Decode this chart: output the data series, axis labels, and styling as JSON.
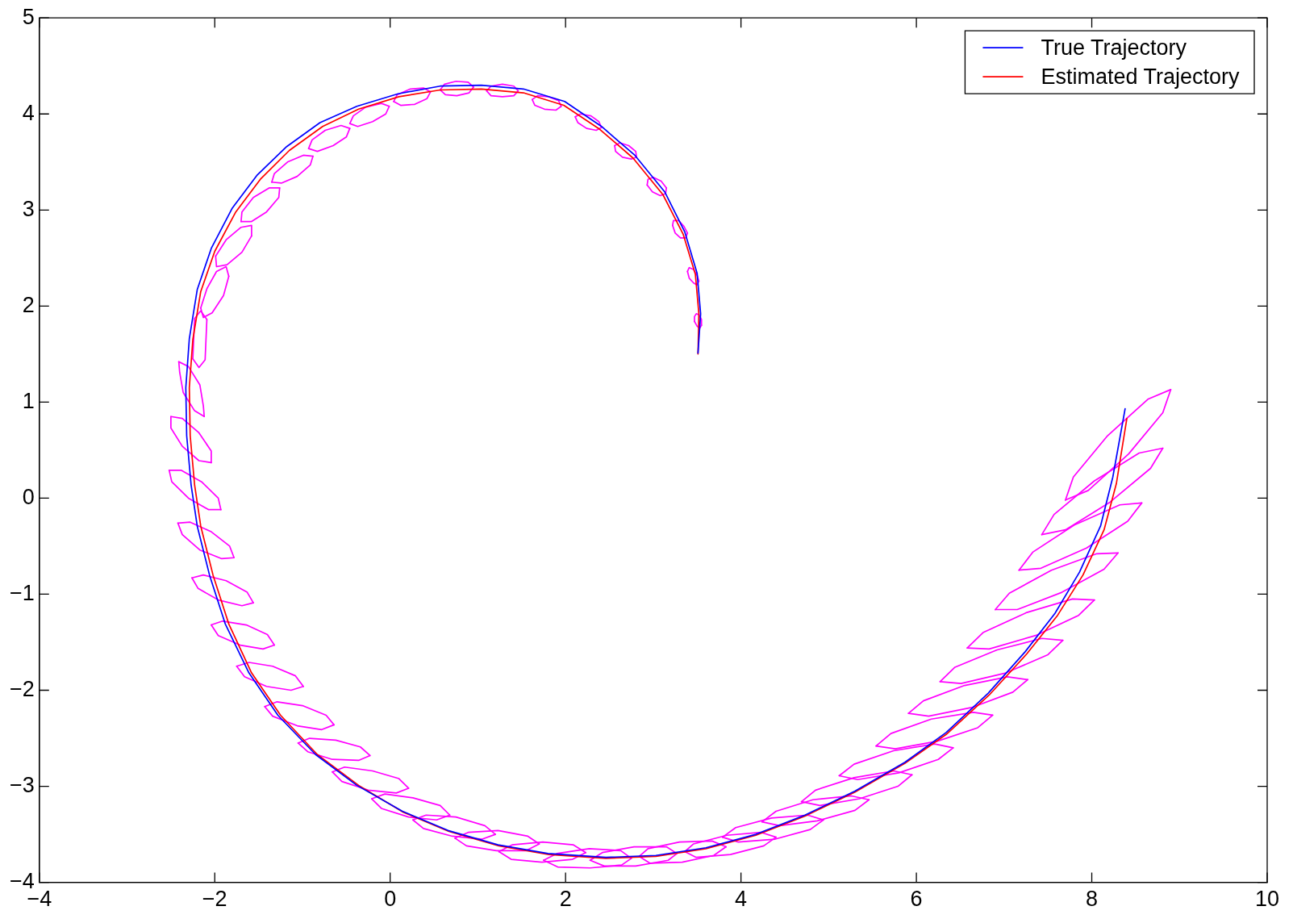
{
  "chart_data": {
    "type": "line",
    "xlim": [
      -4,
      10
    ],
    "xticks": [
      -4,
      -2,
      0,
      2,
      4,
      6,
      8,
      10
    ],
    "ylim": [
      -4,
      5
    ],
    "yticks": [
      -4,
      -3,
      -2,
      -1,
      0,
      1,
      2,
      3,
      4,
      5
    ],
    "legend": "top right",
    "series": [
      {
        "name": "True Trajectory",
        "color": "#0000ff",
        "x": [
          3.51,
          3.54,
          3.5,
          3.36,
          3.13,
          2.79,
          2.41,
          1.99,
          1.52,
          1.04,
          0.57,
          0.09,
          -0.38,
          -0.8,
          -1.18,
          -1.52,
          -1.8,
          -2.04,
          -2.2,
          -2.29,
          -2.33,
          -2.32,
          -2.27,
          -2.2,
          -2.06,
          -1.88,
          -1.61,
          -1.28,
          -0.85,
          -0.38,
          0.14,
          0.66,
          1.23,
          1.8,
          2.46,
          3.03,
          3.6,
          4.17,
          4.73,
          5.3,
          5.87,
          6.34,
          6.82,
          7.24,
          7.58,
          7.86,
          8.1,
          8.24,
          8.38
        ],
        "values": [
          1.51,
          1.92,
          2.34,
          2.77,
          3.19,
          3.57,
          3.87,
          4.13,
          4.26,
          4.3,
          4.29,
          4.21,
          4.08,
          3.91,
          3.66,
          3.36,
          3.02,
          2.6,
          2.17,
          1.66,
          1.15,
          0.65,
          0.14,
          -0.29,
          -0.8,
          -1.31,
          -1.82,
          -2.26,
          -2.67,
          -2.99,
          -3.26,
          -3.46,
          -3.61,
          -3.7,
          -3.74,
          -3.72,
          -3.64,
          -3.5,
          -3.3,
          -3.05,
          -2.75,
          -2.44,
          -2.03,
          -1.6,
          -1.2,
          -0.77,
          -0.29,
          0.22,
          0.93
        ]
      },
      {
        "name": "Estimated Trajectory",
        "color": "#ff0000",
        "x": [
          3.51,
          3.52,
          3.48,
          3.34,
          3.11,
          2.77,
          2.39,
          1.98,
          1.52,
          1.04,
          0.57,
          0.1,
          -0.36,
          -0.77,
          -1.15,
          -1.48,
          -1.76,
          -2.0,
          -2.16,
          -2.25,
          -2.29,
          -2.28,
          -2.23,
          -2.16,
          -2.02,
          -1.84,
          -1.58,
          -1.25,
          -0.83,
          -0.36,
          0.15,
          0.67,
          1.24,
          1.81,
          2.46,
          3.03,
          3.6,
          4.17,
          4.73,
          5.3,
          5.87,
          6.34,
          6.83,
          7.26,
          7.61,
          7.9,
          8.14,
          8.28,
          8.4
        ],
        "values": [
          1.5,
          1.92,
          2.33,
          2.75,
          3.16,
          3.54,
          3.84,
          4.09,
          4.22,
          4.26,
          4.25,
          4.18,
          4.05,
          3.87,
          3.62,
          3.32,
          2.98,
          2.57,
          2.15,
          1.65,
          1.15,
          0.65,
          0.14,
          -0.29,
          -0.8,
          -1.31,
          -1.82,
          -2.26,
          -2.67,
          -2.99,
          -3.27,
          -3.47,
          -3.62,
          -3.71,
          -3.75,
          -3.73,
          -3.65,
          -3.51,
          -3.31,
          -3.06,
          -2.76,
          -2.46,
          -2.05,
          -1.62,
          -1.22,
          -0.8,
          -0.33,
          0.15,
          0.83
        ]
      },
      {
        "color": "#ff00ff",
        "x": [
          7.7,
          7.96,
          8.42,
          8.81,
          8.9
        ],
        "values": [
          -0.02,
          0.08,
          0.46,
          0.89,
          1.13
        ]
      },
      {
        "color": "#ff00ff",
        "x": [
          7.7,
          7.79,
          8.18,
          8.64,
          8.9
        ],
        "values": [
          -0.02,
          0.22,
          0.65,
          1.03,
          1.13
        ]
      },
      {
        "color": "#ff00ff",
        "x": [
          7.43,
          7.7,
          8.21,
          8.67,
          8.81
        ],
        "values": [
          -0.38,
          -0.33,
          -0.04,
          0.31,
          0.52
        ]
      },
      {
        "color": "#ff00ff",
        "x": [
          7.43,
          7.57,
          8.03,
          8.54,
          8.81
        ],
        "values": [
          -0.38,
          -0.17,
          0.18,
          0.47,
          0.52
        ]
      },
      {
        "color": "#ff00ff",
        "x": [
          7.17,
          7.42,
          7.94,
          8.41,
          8.57
        ],
        "values": [
          -0.75,
          -0.73,
          -0.52,
          -0.24,
          -0.05
        ]
      },
      {
        "color": "#ff00ff",
        "x": [
          7.17,
          7.33,
          7.8,
          8.32,
          8.57
        ],
        "values": [
          -0.75,
          -0.56,
          -0.28,
          -0.07,
          -0.05
        ]
      },
      {
        "color": "#ff00ff",
        "x": [
          6.9,
          7.15,
          7.66,
          8.14,
          8.3
        ],
        "values": [
          -1.16,
          -1.16,
          -0.98,
          -0.74,
          -0.57
        ]
      },
      {
        "color": "#ff00ff",
        "x": [
          6.9,
          7.06,
          7.54,
          8.05,
          8.3
        ],
        "values": [
          -1.16,
          -0.99,
          -0.75,
          -0.58,
          -0.57
        ]
      },
      {
        "color": "#ff00ff",
        "x": [
          6.58,
          6.83,
          7.36,
          7.85,
          8.03
        ],
        "values": [
          -1.56,
          -1.57,
          -1.43,
          -1.22,
          -1.06
        ]
      },
      {
        "color": "#ff00ff",
        "x": [
          6.58,
          6.76,
          7.26,
          7.78,
          8.03
        ],
        "values": [
          -1.56,
          -1.4,
          -1.19,
          -1.05,
          -1.06
        ]
      },
      {
        "color": "#ff00ff",
        "x": [
          6.27,
          6.51,
          7.02,
          7.5,
          7.67
        ],
        "values": [
          -1.91,
          -1.93,
          -1.82,
          -1.63,
          -1.48
        ]
      },
      {
        "color": "#ff00ff",
        "x": [
          6.27,
          6.44,
          6.92,
          7.43,
          7.67
        ],
        "values": [
          -1.91,
          -1.76,
          -1.58,
          -1.46,
          -1.48
        ]
      },
      {
        "color": "#ff00ff",
        "x": [
          5.91,
          6.14,
          6.63,
          7.1,
          7.27
        ],
        "values": [
          -2.24,
          -2.27,
          -2.18,
          -2.02,
          -1.89
        ]
      },
      {
        "color": "#ff00ff",
        "x": [
          5.91,
          6.08,
          6.55,
          7.04,
          7.27
        ],
        "values": [
          -2.24,
          -2.11,
          -1.95,
          -1.86,
          -1.89
        ]
      },
      {
        "color": "#ff00ff",
        "x": [
          5.54,
          5.76,
          6.24,
          6.7,
          6.87
        ],
        "values": [
          -2.58,
          -2.61,
          -2.53,
          -2.39,
          -2.26
        ]
      },
      {
        "color": "#ff00ff",
        "x": [
          5.54,
          5.71,
          6.17,
          6.65,
          6.87
        ],
        "values": [
          -2.58,
          -2.45,
          -2.3,
          -2.23,
          -2.26
        ]
      },
      {
        "color": "#ff00ff",
        "x": [
          5.12,
          5.33,
          5.8,
          6.25,
          6.42
        ],
        "values": [
          -2.89,
          -2.93,
          -2.86,
          -2.72,
          -2.6
        ]
      },
      {
        "color": "#ff00ff",
        "x": [
          5.12,
          5.29,
          5.74,
          6.21,
          6.42
        ],
        "values": [
          -2.89,
          -2.77,
          -2.63,
          -2.56,
          -2.6
        ]
      },
      {
        "color": "#ff00ff",
        "x": [
          4.69,
          4.9,
          5.35,
          5.79,
          5.95
        ],
        "values": [
          -3.16,
          -3.2,
          -3.13,
          -3.0,
          -2.88
        ]
      },
      {
        "color": "#ff00ff",
        "x": [
          4.69,
          4.85,
          5.29,
          5.74,
          5.95
        ],
        "values": [
          -3.16,
          -3.04,
          -2.91,
          -2.84,
          -2.88
        ]
      },
      {
        "color": "#ff00ff",
        "x": [
          4.24,
          4.44,
          4.87,
          5.3,
          5.46
        ],
        "values": [
          -3.37,
          -3.41,
          -3.36,
          -3.25,
          -3.14
        ]
      },
      {
        "color": "#ff00ff",
        "x": [
          4.24,
          4.4,
          4.82,
          5.26,
          5.46
        ],
        "values": [
          -3.37,
          -3.26,
          -3.14,
          -3.1,
          -3.14
        ]
      },
      {
        "color": "#ff00ff",
        "x": [
          3.79,
          3.97,
          4.39,
          4.79,
          4.94
        ],
        "values": [
          -3.53,
          -3.58,
          -3.55,
          -3.45,
          -3.35
        ]
      },
      {
        "color": "#ff00ff",
        "x": [
          3.79,
          3.94,
          4.35,
          4.76,
          4.94
        ],
        "values": [
          -3.53,
          -3.43,
          -3.33,
          -3.3,
          -3.35
        ]
      },
      {
        "color": "#ff00ff",
        "x": [
          3.36,
          3.49,
          3.88,
          4.26,
          4.4
        ],
        "values": [
          -3.68,
          -3.74,
          -3.71,
          -3.62,
          -3.53
        ]
      },
      {
        "color": "#ff00ff",
        "x": [
          3.36,
          3.46,
          3.84,
          4.23,
          4.4
        ],
        "values": [
          -3.68,
          -3.6,
          -3.51,
          -3.48,
          -3.53
        ]
      },
      {
        "color": "#ff00ff",
        "x": [
          2.84,
          2.96,
          3.33,
          3.69,
          3.83
        ],
        "values": [
          -3.73,
          -3.8,
          -3.79,
          -3.72,
          -3.63
        ]
      },
      {
        "color": "#ff00ff",
        "x": [
          2.84,
          2.94,
          3.3,
          3.67,
          3.83
        ],
        "values": [
          -3.73,
          -3.65,
          -3.58,
          -3.57,
          -3.63
        ]
      },
      {
        "color": "#ff00ff",
        "x": [
          2.28,
          2.44,
          2.8,
          3.17,
          3.27
        ],
        "values": [
          -3.77,
          -3.83,
          -3.83,
          -3.77,
          -3.7
        ]
      },
      {
        "color": "#ff00ff",
        "x": [
          2.28,
          2.42,
          2.78,
          3.15,
          3.27
        ],
        "values": [
          -3.77,
          -3.69,
          -3.63,
          -3.63,
          -3.7
        ]
      },
      {
        "color": "#ff00ff",
        "x": [
          1.75,
          1.91,
          2.28,
          2.64,
          2.75
        ],
        "values": [
          -3.77,
          -3.84,
          -3.85,
          -3.82,
          -3.75
        ]
      },
      {
        "color": "#ff00ff",
        "x": [
          1.75,
          1.9,
          2.27,
          2.63,
          2.75
        ],
        "values": [
          -3.77,
          -3.7,
          -3.65,
          -3.67,
          -3.75
        ]
      },
      {
        "color": "#ff00ff",
        "x": [
          1.24,
          1.38,
          1.73,
          2.08,
          2.23
        ],
        "values": [
          -3.68,
          -3.76,
          -3.79,
          -3.76,
          -3.69
        ]
      },
      {
        "color": "#ff00ff",
        "x": [
          1.24,
          1.39,
          1.74,
          2.09,
          2.23
        ],
        "values": [
          -3.68,
          -3.61,
          -3.58,
          -3.61,
          -3.69
        ]
      },
      {
        "color": "#ff00ff",
        "x": [
          0.74,
          0.87,
          1.21,
          1.55,
          1.7
        ],
        "values": [
          -3.54,
          -3.62,
          -3.67,
          -3.67,
          -3.6
        ]
      },
      {
        "color": "#ff00ff",
        "x": [
          0.74,
          0.89,
          1.23,
          1.57,
          1.7
        ],
        "values": [
          -3.54,
          -3.48,
          -3.46,
          -3.52,
          -3.6
        ]
      },
      {
        "color": "#ff00ff",
        "x": [
          0.26,
          0.38,
          0.71,
          1.05,
          1.2
        ],
        "values": [
          -3.35,
          -3.44,
          -3.52,
          -3.55,
          -3.5
        ]
      },
      {
        "color": "#ff00ff",
        "x": [
          0.26,
          0.41,
          0.75,
          1.08,
          1.2
        ],
        "values": [
          -3.35,
          -3.3,
          -3.32,
          -3.41,
          -3.5
        ]
      },
      {
        "color": "#ff00ff",
        "x": [
          -0.21,
          -0.1,
          0.21,
          0.53,
          0.68
        ],
        "values": [
          -3.13,
          -3.23,
          -3.32,
          -3.35,
          -3.3
        ]
      },
      {
        "color": "#ff00ff",
        "x": [
          -0.21,
          -0.06,
          0.26,
          0.57,
          0.68
        ],
        "values": [
          -3.13,
          -3.08,
          -3.12,
          -3.2,
          -3.3
        ]
      },
      {
        "color": "#ff00ff",
        "x": [
          -0.66,
          -0.55,
          -0.25,
          0.07,
          0.21
        ],
        "values": [
          -2.85,
          -2.95,
          -3.04,
          -3.07,
          -3.02
        ]
      },
      {
        "color": "#ff00ff",
        "x": [
          -0.66,
          -0.52,
          -0.2,
          0.1,
          0.21
        ],
        "values": [
          -2.85,
          -2.8,
          -2.84,
          -2.92,
          -3.02
        ]
      },
      {
        "color": "#ff00ff",
        "x": [
          -1.05,
          -0.94,
          -0.66,
          -0.36,
          -0.23
        ],
        "values": [
          -2.55,
          -2.64,
          -2.72,
          -2.73,
          -2.68
        ]
      },
      {
        "color": "#ff00ff",
        "x": [
          -1.05,
          -0.92,
          -0.62,
          -0.34,
          -0.23
        ],
        "values": [
          -2.55,
          -2.5,
          -2.52,
          -2.59,
          -2.68
        ]
      },
      {
        "color": "#ff00ff",
        "x": [
          -1.43,
          -1.34,
          -1.06,
          -0.78,
          -0.64
        ],
        "values": [
          -2.17,
          -2.27,
          -2.37,
          -2.41,
          -2.36
        ]
      },
      {
        "color": "#ff00ff",
        "x": [
          -1.43,
          -1.29,
          -1.0,
          -0.73,
          -0.64
        ],
        "values": [
          -2.17,
          -2.12,
          -2.16,
          -2.26,
          -2.36
        ]
      },
      {
        "color": "#ff00ff",
        "x": [
          -1.75,
          -1.66,
          -1.41,
          -1.13,
          -0.99
        ],
        "values": [
          -1.75,
          -1.86,
          -1.96,
          -2.0,
          -1.96
        ]
      },
      {
        "color": "#ff00ff",
        "x": [
          -1.75,
          -1.61,
          -1.34,
          -1.08,
          -0.99
        ],
        "values": [
          -1.75,
          -1.71,
          -1.75,
          -1.85,
          -1.96
        ]
      },
      {
        "color": "#ff00ff",
        "x": [
          -2.04,
          -1.96,
          -1.71,
          -1.45,
          -1.32
        ],
        "values": [
          -1.32,
          -1.43,
          -1.53,
          -1.57,
          -1.53
        ]
      },
      {
        "color": "#ff00ff",
        "x": [
          -2.04,
          -1.91,
          -1.64,
          -1.4,
          -1.32
        ],
        "values": [
          -1.32,
          -1.28,
          -1.32,
          -1.42,
          -1.53
        ]
      },
      {
        "color": "#ff00ff",
        "x": [
          -2.26,
          -2.19,
          -1.96,
          -1.69,
          -1.56
        ],
        "values": [
          -0.83,
          -0.94,
          -1.06,
          -1.12,
          -1.09
        ]
      },
      {
        "color": "#ff00ff",
        "x": [
          -2.26,
          -2.13,
          -1.87,
          -1.63,
          -1.56
        ],
        "values": [
          -0.83,
          -0.8,
          -0.86,
          -0.98,
          -1.09
        ]
      },
      {
        "color": "#ff00ff",
        "x": [
          -2.42,
          -2.37,
          -2.17,
          -1.92,
          -1.78
        ],
        "values": [
          -0.26,
          -0.38,
          -0.54,
          -0.63,
          -0.62
        ]
      },
      {
        "color": "#ff00ff",
        "x": [
          -2.42,
          -2.28,
          -2.04,
          -1.83,
          -1.78
        ],
        "values": [
          -0.26,
          -0.25,
          -0.35,
          -0.5,
          -0.62
        ]
      },
      {
        "color": "#ff00ff",
        "x": [
          -2.52,
          -2.49,
          -2.3,
          -2.07,
          -1.93
        ],
        "values": [
          0.29,
          0.17,
          0.0,
          -0.12,
          -0.12
        ]
      },
      {
        "color": "#ff00ff",
        "x": [
          -2.52,
          -2.38,
          -2.15,
          -1.96,
          -1.93
        ],
        "values": [
          0.29,
          0.29,
          0.17,
          0.0,
          -0.12
        ]
      },
      {
        "color": "#ff00ff",
        "x": [
          -2.5,
          -2.5,
          -2.37,
          -2.18,
          -2.04
        ],
        "values": [
          0.85,
          0.73,
          0.54,
          0.39,
          0.37
        ]
      },
      {
        "color": "#ff00ff",
        "x": [
          -2.5,
          -2.37,
          -2.18,
          -2.04,
          -2.04
        ],
        "values": [
          0.85,
          0.83,
          0.68,
          0.49,
          0.37
        ]
      },
      {
        "color": "#ff00ff",
        "x": [
          -2.41,
          -2.4,
          -2.36,
          -2.23,
          -2.12
        ],
        "values": [
          1.42,
          1.31,
          1.1,
          0.91,
          0.85
        ]
      },
      {
        "color": "#ff00ff",
        "x": [
          -2.41,
          -2.3,
          -2.17,
          -2.13,
          -2.12
        ],
        "values": [
          1.42,
          1.37,
          1.18,
          0.96,
          0.85
        ]
      },
      {
        "color": "#ff00ff",
        "x": [
          -2.25,
          -2.18,
          -2.11,
          -2.09
        ],
        "values": [
          1.45,
          1.36,
          1.44,
          1.86
        ]
      },
      {
        "color": "#ff00ff",
        "x": [
          -2.25,
          -2.23,
          -2.16,
          -2.09
        ],
        "values": [
          1.45,
          1.87,
          1.95,
          1.86
        ]
      },
      {
        "color": "#ff00ff",
        "x": [
          -2.16,
          -2.13,
          -2.03,
          -1.9,
          -1.84
        ],
        "values": [
          1.98,
          1.88,
          1.93,
          2.11,
          2.31
        ]
      },
      {
        "color": "#ff00ff",
        "x": [
          -2.16,
          -2.09,
          -1.98,
          -1.87,
          -1.84
        ],
        "values": [
          1.98,
          2.18,
          2.36,
          2.41,
          2.31
        ]
      },
      {
        "color": "#ff00ff",
        "x": [
          -1.99,
          -1.98,
          -1.86,
          -1.69,
          -1.58
        ],
        "values": [
          2.52,
          2.41,
          2.43,
          2.56,
          2.73
        ]
      },
      {
        "color": "#ff00ff",
        "x": [
          -1.99,
          -1.87,
          -1.7,
          -1.58,
          -1.58
        ],
        "values": [
          2.52,
          2.69,
          2.82,
          2.84,
          2.73
        ]
      },
      {
        "color": "#ff00ff",
        "x": [
          -1.7,
          -1.58,
          -1.41,
          -1.27,
          -1.26
        ],
        "values": [
          2.88,
          2.88,
          2.98,
          3.13,
          3.23
        ]
      },
      {
        "color": "#ff00ff",
        "x": [
          -1.7,
          -1.69,
          -1.56,
          -1.38,
          -1.26
        ],
        "values": [
          2.88,
          2.98,
          3.13,
          3.23,
          3.23
        ]
      },
      {
        "color": "#ff00ff",
        "x": [
          -1.35,
          -1.24,
          -1.06,
          -0.91,
          -0.88
        ],
        "values": [
          3.29,
          3.28,
          3.35,
          3.47,
          3.56
        ]
      },
      {
        "color": "#ff00ff",
        "x": [
          -1.35,
          -1.32,
          -1.17,
          -0.99,
          -0.88
        ],
        "values": [
          3.29,
          3.38,
          3.5,
          3.57,
          3.56
        ]
      },
      {
        "color": "#ff00ff",
        "x": [
          -0.93,
          -0.83,
          -0.65,
          -0.5,
          -0.46
        ],
        "values": [
          3.64,
          3.61,
          3.67,
          3.76,
          3.85
        ]
      },
      {
        "color": "#ff00ff",
        "x": [
          -0.93,
          -0.89,
          -0.74,
          -0.56,
          -0.46
        ],
        "values": [
          3.64,
          3.73,
          3.83,
          3.88,
          3.85
        ]
      },
      {
        "color": "#ff00ff",
        "x": [
          -0.46,
          -0.37,
          -0.2,
          -0.05,
          -0.01
        ],
        "values": [
          3.9,
          3.87,
          3.92,
          4.0,
          4.08
        ]
      },
      {
        "color": "#ff00ff",
        "x": [
          -0.46,
          -0.42,
          -0.28,
          -0.1,
          -0.01
        ],
        "values": [
          3.9,
          3.98,
          4.07,
          4.11,
          4.08
        ]
      },
      {
        "color": "#ff00ff",
        "x": [
          0.04,
          0.12,
          0.28,
          0.42,
          0.46
        ],
        "values": [
          4.13,
          4.09,
          4.1,
          4.16,
          4.23
        ]
      },
      {
        "color": "#ff00ff",
        "x": [
          0.04,
          0.08,
          0.23,
          0.38,
          0.46
        ],
        "values": [
          4.13,
          4.2,
          4.26,
          4.27,
          4.23
        ]
      },
      {
        "color": "#ff00ff",
        "x": [
          0.57,
          0.63,
          0.76,
          0.9,
          0.95
        ],
        "values": [
          4.25,
          4.2,
          4.19,
          4.22,
          4.28
        ]
      },
      {
        "color": "#ff00ff",
        "x": [
          0.57,
          0.62,
          0.75,
          0.89,
          0.95
        ],
        "values": [
          4.25,
          4.31,
          4.34,
          4.33,
          4.28
        ]
      },
      {
        "color": "#ff00ff",
        "x": [
          1.1,
          1.15,
          1.28,
          1.41,
          1.46
        ],
        "values": [
          4.24,
          4.19,
          4.18,
          4.19,
          4.24
        ]
      },
      {
        "color": "#ff00ff",
        "x": [
          1.1,
          1.15,
          1.28,
          1.41,
          1.46
        ],
        "values": [
          4.24,
          4.29,
          4.31,
          4.29,
          4.24
        ]
      },
      {
        "color": "#ff00ff",
        "x": [
          1.62,
          1.65,
          1.76,
          1.89,
          1.95
        ],
        "values": [
          4.15,
          4.09,
          4.05,
          4.04,
          4.08
        ]
      },
      {
        "color": "#ff00ff",
        "x": [
          1.62,
          1.68,
          1.8,
          1.92,
          1.95
        ],
        "values": [
          4.15,
          4.19,
          4.18,
          4.14,
          4.08
        ]
      },
      {
        "color": "#ff00ff",
        "x": [
          2.11,
          2.14,
          2.24,
          2.35,
          2.41
        ],
        "values": [
          3.97,
          3.91,
          3.85,
          3.83,
          3.86
        ]
      },
      {
        "color": "#ff00ff",
        "x": [
          2.11,
          2.17,
          2.29,
          2.38,
          2.41
        ],
        "values": [
          3.97,
          4.0,
          3.98,
          3.92,
          3.86
        ]
      },
      {
        "color": "#ff00ff",
        "x": [
          2.56,
          2.57,
          2.65,
          2.75,
          2.81
        ],
        "values": [
          3.67,
          3.61,
          3.55,
          3.53,
          3.55
        ]
      },
      {
        "color": "#ff00ff",
        "x": [
          2.56,
          2.62,
          2.72,
          2.8,
          2.81
        ],
        "values": [
          3.67,
          3.7,
          3.67,
          3.61,
          3.55
        ]
      },
      {
        "color": "#ff00ff",
        "x": [
          2.93,
          2.94,
          3.0,
          3.09,
          3.15
        ],
        "values": [
          3.26,
          3.32,
          3.34,
          3.3,
          3.23
        ]
      },
      {
        "color": "#ff00ff",
        "x": [
          2.93,
          2.99,
          3.08,
          3.14,
          3.15
        ],
        "values": [
          3.26,
          3.19,
          3.15,
          3.17,
          3.23
        ]
      },
      {
        "color": "#ff00ff",
        "x": [
          3.22,
          3.23,
          3.29,
          3.35,
          3.39
        ],
        "values": [
          2.84,
          2.89,
          2.89,
          2.83,
          2.76
        ]
      },
      {
        "color": "#ff00ff",
        "x": [
          3.22,
          3.25,
          3.31,
          3.37,
          3.39
        ],
        "values": [
          2.84,
          2.76,
          2.71,
          2.71,
          2.76
        ]
      },
      {
        "color": "#ff00ff",
        "x": [
          3.39,
          3.41,
          3.46,
          3.5,
          3.52
        ],
        "values": [
          2.36,
          2.4,
          2.38,
          2.32,
          2.26
        ]
      },
      {
        "color": "#ff00ff",
        "x": [
          3.39,
          3.41,
          3.46,
          3.5,
          3.52
        ],
        "values": [
          2.36,
          2.29,
          2.24,
          2.22,
          2.26
        ]
      },
      {
        "color": "#ff00ff",
        "x": [
          3.47,
          3.47,
          3.49,
          3.52,
          3.55,
          3.55
        ],
        "values": [
          1.84,
          1.89,
          1.92,
          1.91,
          1.86,
          1.8
        ]
      },
      {
        "color": "#ff00ff",
        "x": [
          3.47,
          3.5,
          3.53,
          3.55
        ],
        "values": [
          1.84,
          1.79,
          1.77,
          1.8
        ]
      }
    ]
  }
}
